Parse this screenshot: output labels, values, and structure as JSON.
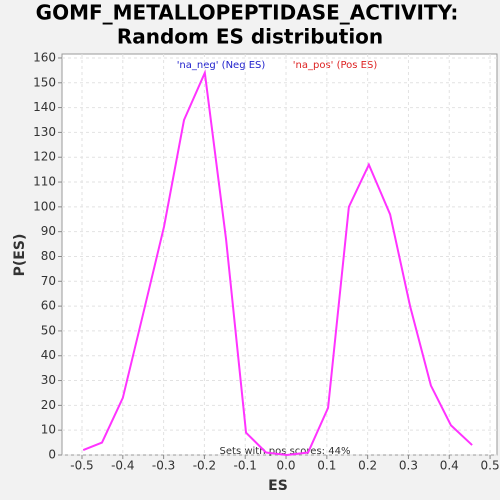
{
  "chart_data": {
    "type": "line",
    "title": [
      "GOMF_METALLOPEPTIDASE_ACTIVITY:",
      "Random ES distribution"
    ],
    "xlabel": "ES",
    "ylabel": "P(ES)",
    "legend": [
      {
        "label": "'na_neg' (Neg ES)",
        "color": "#2222cc"
      },
      {
        "label": "'na_pos' (Pos ES)",
        "color": "#dd2222"
      }
    ],
    "annotation": "Sets with pos scores: 44%",
    "x": [
      -0.497,
      -0.451,
      -0.4,
      -0.35,
      -0.299,
      -0.25,
      -0.199,
      -0.147,
      -0.098,
      -0.049,
      0.002,
      0.054,
      0.103,
      0.154,
      0.203,
      0.255,
      0.304,
      0.355,
      0.404,
      0.456
    ],
    "series": [
      {
        "color": "#ff33ff",
        "values": [
          2,
          5,
          23,
          57,
          92,
          135,
          154,
          87,
          9,
          1,
          0,
          1,
          19,
          100,
          117,
          97,
          60,
          28,
          12,
          4
        ]
      }
    ],
    "xlim": [
      -0.549,
      0.517
    ],
    "ylim": [
      0,
      161.6
    ],
    "xticks": [
      -0.5,
      -0.4,
      -0.3,
      -0.2,
      -0.1,
      {
        "value": 0,
        "label": "0.0"
      },
      0.1,
      0.2,
      0.3,
      0.4,
      0.5
    ],
    "yticks": [
      0,
      10,
      20,
      30,
      40,
      50,
      60,
      70,
      80,
      90,
      100,
      110,
      120,
      130,
      140,
      150,
      160
    ],
    "grid": true
  }
}
